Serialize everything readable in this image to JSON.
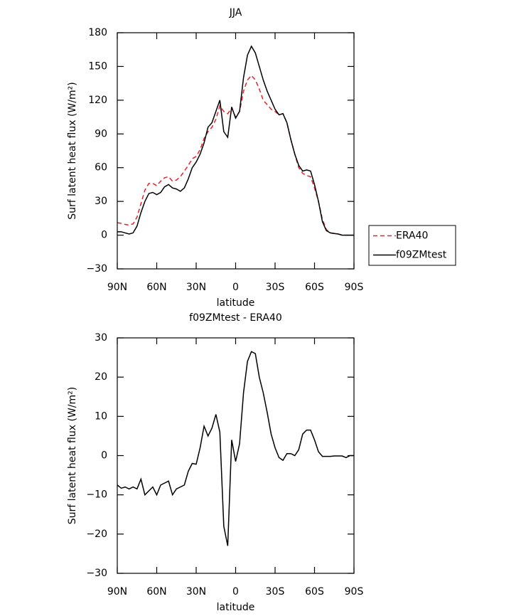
{
  "chart_data": [
    {
      "type": "line",
      "title": "JJA",
      "xlabel": "latitude",
      "ylabel": "Surf latent heat flux (W/m²)",
      "x": [
        90,
        87,
        84,
        81,
        78,
        75,
        72,
        69,
        66,
        63,
        60,
        57,
        54,
        51,
        48,
        45,
        42,
        39,
        36,
        33,
        30,
        27,
        24,
        21,
        18,
        15,
        12,
        9,
        6,
        3,
        0,
        -3,
        -6,
        -9,
        -12,
        -15,
        -18,
        -21,
        -24,
        -27,
        -30,
        -33,
        -36,
        -39,
        -42,
        -45,
        -48,
        -51,
        -54,
        -57,
        -60,
        -63,
        -66,
        -69,
        -72,
        -75,
        -78,
        -81,
        -84,
        -87,
        -90
      ],
      "series": [
        {
          "name": "ERA40",
          "color": "#e8202a",
          "linestyle": "dashed",
          "values": [
            11,
            10.5,
            9.5,
            9,
            10,
            16,
            28,
            40,
            46,
            46,
            44,
            48,
            51,
            52,
            48,
            49,
            52,
            57,
            62,
            68,
            70,
            76,
            86,
            92,
            96,
            103,
            115,
            110,
            108,
            113,
            105,
            110,
            128,
            138,
            142,
            138,
            130,
            120,
            116,
            112,
            110,
            107,
            108,
            100,
            85,
            72,
            60,
            55,
            53,
            52,
            42,
            30,
            14,
            5,
            2,
            1.5,
            1,
            0,
            0,
            0,
            0
          ]
        },
        {
          "name": "f09ZMtest",
          "color": "#000000",
          "linestyle": "solid",
          "values": [
            3,
            3,
            2,
            1,
            2,
            8,
            20,
            30,
            37,
            38,
            36,
            38,
            43,
            45,
            42,
            41,
            39,
            42,
            50,
            60,
            65,
            72,
            82,
            96,
            100,
            110,
            120,
            92,
            87,
            114,
            104,
            110,
            140,
            160,
            168,
            162,
            150,
            138,
            128,
            120,
            112,
            107,
            108,
            100,
            85,
            72,
            62,
            57,
            58,
            57,
            45,
            30,
            12,
            4,
            2,
            1.5,
            1,
            0,
            0,
            0,
            0
          ]
        }
      ],
      "xlim": [
        90,
        -90
      ],
      "xticks": [
        {
          "value": 90,
          "label": "90N"
        },
        {
          "value": 60,
          "label": "60N"
        },
        {
          "value": 30,
          "label": "30N"
        },
        0,
        {
          "value": -30,
          "label": "30S"
        },
        {
          "value": -60,
          "label": "60S"
        },
        {
          "value": -90,
          "label": "90S"
        }
      ],
      "ylim": [
        -30,
        180
      ],
      "yticks": [
        {
          "value": -30,
          "label": "−30"
        },
        0,
        30,
        60,
        90,
        120,
        150,
        180
      ],
      "legend": "right"
    },
    {
      "type": "line",
      "title": "f09ZMtest - ERA40",
      "xlabel": "latitude",
      "ylabel": "Surf latent heat flux (W/m²)",
      "x": [
        90,
        87,
        84,
        81,
        78,
        75,
        72,
        69,
        66,
        63,
        60,
        57,
        54,
        51,
        48,
        45,
        42,
        39,
        36,
        33,
        30,
        27,
        24,
        21,
        18,
        15,
        12,
        9,
        6,
        3,
        0,
        -3,
        -6,
        -9,
        -12,
        -15,
        -18,
        -21,
        -24,
        -27,
        -30,
        -33,
        -36,
        -39,
        -42,
        -45,
        -48,
        -51,
        -54,
        -57,
        -60,
        -63,
        -66,
        -69,
        -72,
        -75,
        -78,
        -81,
        -84,
        -87,
        -90
      ],
      "series": [
        {
          "color": "#000000",
          "linestyle": "solid",
          "values": [
            -7.5,
            -8.3,
            -8,
            -8.5,
            -8,
            -8.5,
            -6,
            -10,
            -9,
            -8,
            -10,
            -7.5,
            -7,
            -6.5,
            -10,
            -8.5,
            -8,
            -7.5,
            -4,
            -2,
            -2.2,
            2,
            7.5,
            5,
            7,
            10.5,
            6,
            -18,
            -23,
            4,
            -1.5,
            3,
            16,
            24,
            26.5,
            26,
            20,
            16,
            11,
            5.5,
            2,
            -0.5,
            -1.2,
            0.5,
            0.5,
            0,
            1.5,
            5.5,
            6.5,
            6.5,
            4,
            1,
            -0.2,
            -0.2,
            -0.2,
            -0.1,
            -0.1,
            -0.1,
            -0.5,
            0,
            0
          ]
        }
      ],
      "xlim": [
        90,
        -90
      ],
      "xticks": [
        {
          "value": 90,
          "label": "90N"
        },
        {
          "value": 60,
          "label": "60N"
        },
        {
          "value": 30,
          "label": "30N"
        },
        0,
        {
          "value": -30,
          "label": "30S"
        },
        {
          "value": -60,
          "label": "60S"
        },
        {
          "value": -90,
          "label": "90S"
        }
      ],
      "ylim": [
        -30,
        30
      ],
      "yticks": [
        {
          "value": -30,
          "label": "−30"
        },
        {
          "value": -20,
          "label": "−20"
        },
        {
          "value": -10,
          "label": "−10"
        },
        0,
        10,
        20,
        30
      ]
    }
  ]
}
